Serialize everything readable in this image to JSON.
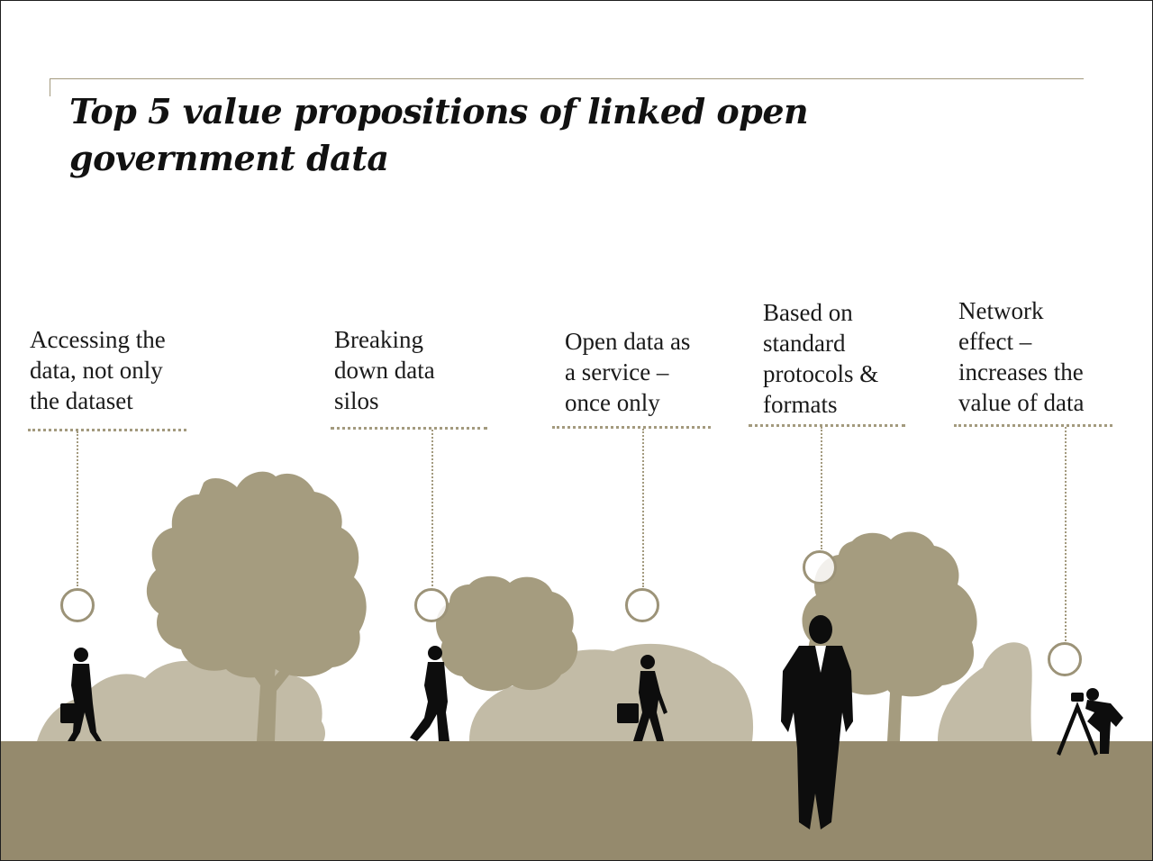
{
  "slide": {
    "title": "Top 5 value propositions of linked open government data"
  },
  "colors": {
    "ground": "#958a6d",
    "tree": "#a59c7f",
    "bush": "#c2bba6",
    "silhouette": "#0d0d0d",
    "marker": "#9c9378"
  },
  "propositions": [
    {
      "label": "Accessing the\ndata, not only\nthe dataset",
      "icon": "businesswoman-silhouette"
    },
    {
      "label": "Breaking\ndown data\nsilos",
      "icon": "walking-man-silhouette"
    },
    {
      "label": "Open data as\na service –\nonce only",
      "icon": "woman-with-briefcase-silhouette"
    },
    {
      "label": "Based on\nstandard\nprotocols &\nformats",
      "icon": "businessman-silhouette"
    },
    {
      "label": "Network\neffect –\nincreases the\nvalue of data",
      "icon": "photographer-silhouette"
    }
  ]
}
